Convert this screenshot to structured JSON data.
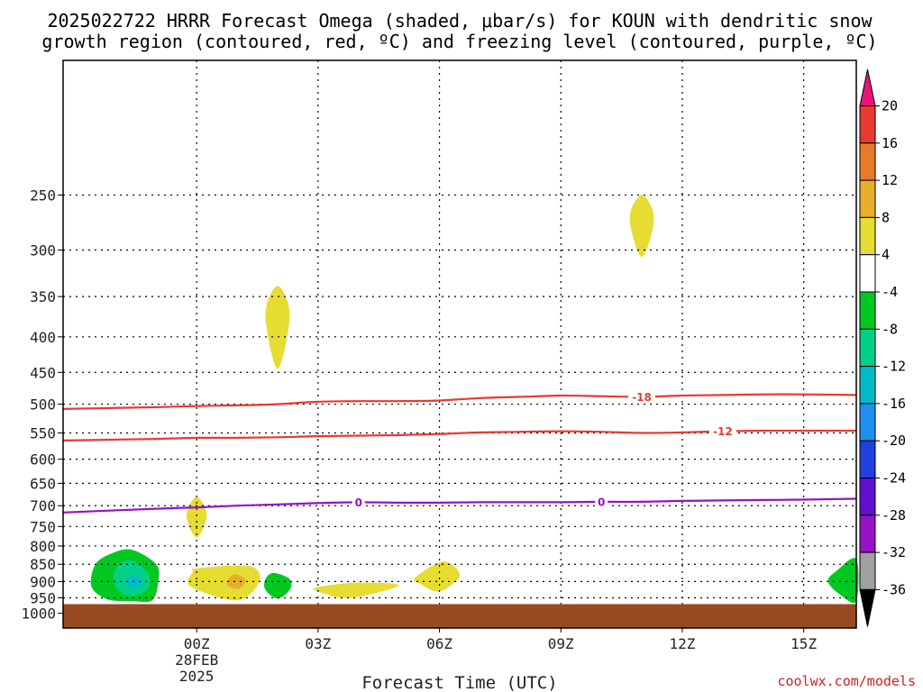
{
  "chart_data": {
    "type": "time-height cross section",
    "title_lines": [
      "2025022722 HRRR Forecast Omega (shaded, μbar/s) for KOUN with dendritic snow",
      "growth region (contoured, red, ºC) and freezing level (contoured, purple, ºC)"
    ],
    "xlabel": "Forecast Time (UTC)",
    "credit": "coolwx.com/models",
    "x_range_hours": [
      -3.3,
      16.3
    ],
    "y_range_hPa": [
      1050,
      160
    ],
    "x_ticks": [
      {
        "hour": 0,
        "label": "00Z",
        "sublabels": [
          "28FEB",
          "2025"
        ]
      },
      {
        "hour": 3,
        "label": "03Z",
        "sublabels": []
      },
      {
        "hour": 6,
        "label": "06Z",
        "sublabels": []
      },
      {
        "hour": 9,
        "label": "09Z",
        "sublabels": []
      },
      {
        "hour": 12,
        "label": "12Z",
        "sublabels": []
      },
      {
        "hour": 15,
        "label": "15Z",
        "sublabels": []
      }
    ],
    "y_ticks": [
      250,
      300,
      350,
      400,
      450,
      500,
      550,
      600,
      650,
      700,
      750,
      800,
      850,
      900,
      950,
      1000
    ],
    "grid": true,
    "ground_pressure_hPa": 970,
    "ground_color": "#9a4a22",
    "contours": [
      {
        "name": "-18",
        "color": "#e83a30",
        "labels": [
          {
            "hour": 11.0,
            "text": "-18"
          }
        ],
        "points": [
          [
            -3.3,
            508
          ],
          [
            -1,
            505
          ],
          [
            0,
            503
          ],
          [
            1,
            502
          ],
          [
            2,
            500
          ],
          [
            3,
            496
          ],
          [
            4,
            495
          ],
          [
            5,
            495
          ],
          [
            6,
            494
          ],
          [
            7,
            490
          ],
          [
            8,
            488
          ],
          [
            9,
            486
          ],
          [
            10,
            487
          ],
          [
            11,
            488
          ],
          [
            12,
            486
          ],
          [
            13,
            485
          ],
          [
            14,
            484
          ],
          [
            15,
            484
          ],
          [
            16.3,
            485
          ]
        ]
      },
      {
        "name": "-12",
        "color": "#e83a30",
        "labels": [
          {
            "hour": 13.0,
            "text": "-12"
          }
        ],
        "points": [
          [
            -3.3,
            564
          ],
          [
            -1,
            561
          ],
          [
            0,
            559
          ],
          [
            1,
            559
          ],
          [
            2,
            558
          ],
          [
            3,
            556
          ],
          [
            4,
            555
          ],
          [
            5,
            554
          ],
          [
            6,
            552
          ],
          [
            7,
            549
          ],
          [
            8,
            548
          ],
          [
            9,
            547
          ],
          [
            10,
            548
          ],
          [
            11,
            550
          ],
          [
            12,
            549
          ],
          [
            13,
            547
          ],
          [
            14,
            546
          ],
          [
            15,
            546
          ],
          [
            16.3,
            546
          ]
        ]
      },
      {
        "name": "0",
        "color": "#9810c8",
        "labels": [
          {
            "hour": 4.0,
            "text": "0"
          },
          {
            "hour": 10.0,
            "text": "0"
          }
        ],
        "points": [
          [
            -3.3,
            716
          ],
          [
            -1,
            707
          ],
          [
            0,
            704
          ],
          [
            1,
            700
          ],
          [
            2,
            697
          ],
          [
            3,
            694
          ],
          [
            4,
            692
          ],
          [
            5,
            693
          ],
          [
            6,
            693
          ],
          [
            7,
            692
          ],
          [
            8,
            692
          ],
          [
            9,
            692
          ],
          [
            10,
            691
          ],
          [
            11,
            691
          ],
          [
            12,
            689
          ],
          [
            13,
            688
          ],
          [
            14,
            687
          ],
          [
            15,
            686
          ],
          [
            16.3,
            684
          ]
        ]
      }
    ],
    "omega_regions": [
      {
        "level": "4 to 8",
        "color": "#e6dc32",
        "points": [
          [
            2.0,
            338
          ],
          [
            2.3,
            372
          ],
          [
            2.0,
            445
          ],
          [
            1.7,
            372
          ]
        ]
      },
      {
        "level": "4 to 8",
        "color": "#e6dc32",
        "points": [
          [
            11.0,
            250
          ],
          [
            11.3,
            270
          ],
          [
            11.0,
            307
          ],
          [
            10.7,
            270
          ]
        ]
      },
      {
        "level": "4 to 8",
        "color": "#e6dc32",
        "points": [
          [
            0.0,
            680
          ],
          [
            0.25,
            722
          ],
          [
            0.0,
            778
          ],
          [
            -0.25,
            722
          ]
        ]
      },
      {
        "level": "4 to 8",
        "color": "#e6dc32",
        "points": [
          [
            0.0,
            862
          ],
          [
            1.3,
            855
          ],
          [
            1.55,
            900
          ],
          [
            1.0,
            958
          ],
          [
            -0.15,
            915
          ],
          [
            -0.1,
            872
          ]
        ]
      },
      {
        "level": "4 to 8",
        "color": "#e6dc32",
        "points": [
          [
            3.0,
            917
          ],
          [
            4.0,
            903
          ],
          [
            5.0,
            912
          ],
          [
            3.8,
            950
          ],
          [
            3.0,
            930
          ]
        ]
      },
      {
        "level": "4 to 8",
        "color": "#e6dc32",
        "points": [
          [
            5.4,
            888
          ],
          [
            6.1,
            842
          ],
          [
            6.5,
            882
          ],
          [
            6.0,
            930
          ],
          [
            5.5,
            905
          ]
        ]
      },
      {
        "level": "8 to 12",
        "color": "#e8ae2a",
        "points": [
          [
            0.9,
            880
          ],
          [
            1.2,
            893
          ],
          [
            1.05,
            922
          ],
          [
            0.75,
            910
          ]
        ]
      },
      {
        "level": "-8 to -4",
        "color": "#00c820",
        "points": [
          [
            -1.6,
            810
          ],
          [
            -1.0,
            850
          ],
          [
            -0.95,
            900
          ],
          [
            -1.1,
            958
          ],
          [
            -1.6,
            960
          ],
          [
            -2.2,
            955
          ],
          [
            -2.6,
            915
          ],
          [
            -2.5,
            850
          ],
          [
            -2.1,
            820
          ]
        ]
      },
      {
        "level": "-12 to -8",
        "color": "#00d088",
        "points": [
          [
            -1.6,
            840
          ],
          [
            -1.2,
            875
          ],
          [
            -1.2,
            920
          ],
          [
            -1.6,
            945
          ],
          [
            -1.95,
            925
          ],
          [
            -2.05,
            880
          ],
          [
            -1.9,
            850
          ]
        ]
      },
      {
        "level": "-16 to -12",
        "color": "#00bcc8",
        "points": [
          [
            -1.55,
            880
          ],
          [
            -1.35,
            900
          ],
          [
            -1.55,
            922
          ],
          [
            -1.75,
            900
          ]
        ]
      },
      {
        "level": "-8 to -4",
        "color": "#00c820",
        "points": [
          [
            1.9,
            875
          ],
          [
            2.3,
            893
          ],
          [
            2.3,
            925
          ],
          [
            2.0,
            952
          ],
          [
            1.7,
            925
          ],
          [
            1.7,
            893
          ]
        ]
      },
      {
        "level": "-8 to -4",
        "color": "#00c820",
        "points": [
          [
            16.3,
            835
          ],
          [
            16.3,
            960
          ],
          [
            15.9,
            940
          ],
          [
            15.6,
            900
          ],
          [
            15.8,
            870
          ]
        ]
      }
    ]
  },
  "colorbar": {
    "bins": [
      {
        "color": "#e8147a",
        "label": "20"
      },
      {
        "color": "#e83a30",
        "label": "16"
      },
      {
        "color": "#e87a28",
        "label": "12"
      },
      {
        "color": "#e8ae2a",
        "label": "8"
      },
      {
        "color": "#e6dc32",
        "label": "4"
      },
      {
        "color": "#ffffff",
        "label": "-4"
      },
      {
        "color": "#00c820",
        "label": "-8"
      },
      {
        "color": "#00d088",
        "label": "-12"
      },
      {
        "color": "#00bcc8",
        "label": "-16"
      },
      {
        "color": "#1e90f0",
        "label": "-20"
      },
      {
        "color": "#2040e0",
        "label": "-24"
      },
      {
        "color": "#6010d0",
        "label": "-28"
      },
      {
        "color": "#9810c8",
        "label": "-32"
      },
      {
        "color": "#a0a0a0",
        "label": "-36"
      },
      {
        "color": "#000000",
        "label": ""
      }
    ]
  }
}
